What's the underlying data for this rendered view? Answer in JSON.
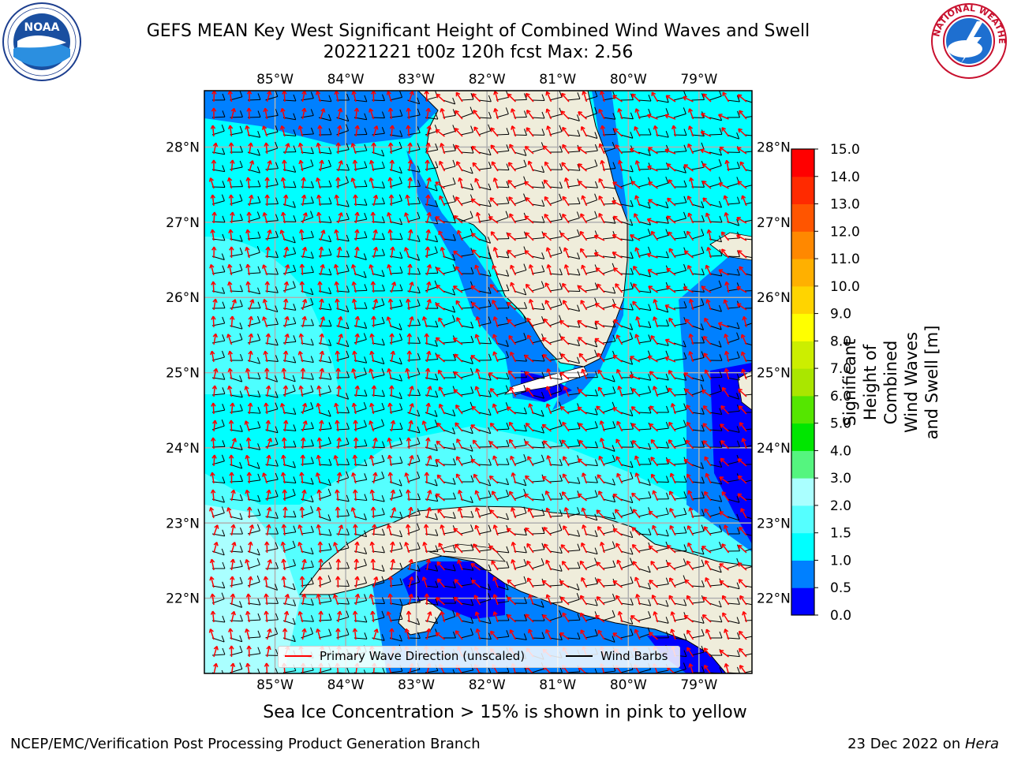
{
  "title": {
    "line1": "GEFS MEAN Key West Significant Height of Combined Wind Waves and Swell",
    "line2": "20221221 t00z 120h fcst   Max: 2.56"
  },
  "logos": {
    "noaa": {
      "text": "NOAA",
      "ring_text": "NATIONAL OCEANIC AND ATMOSPHERIC ADMINISTRATION · U.S. DEPARTMENT OF COMMERCE"
    },
    "nws": {
      "ring_text": "NATIONAL WEATHER SERVICE"
    }
  },
  "map": {
    "lon_labels": [
      "85°W",
      "84°W",
      "83°W",
      "82°W",
      "81°W",
      "80°W",
      "79°W"
    ],
    "lat_labels": [
      "28°N",
      "27°N",
      "26°N",
      "25°N",
      "24°N",
      "23°N",
      "22°N"
    ],
    "lon_values": [
      -85,
      -84,
      -83,
      -82,
      -81,
      -80,
      -79
    ],
    "lat_values": [
      28,
      27,
      26,
      25,
      24,
      23,
      22
    ],
    "extent": {
      "west": -86.0,
      "east": -78.25,
      "south": 21.0,
      "north": 28.75
    },
    "colors": {
      "land": "#efeddb",
      "coast": "#000000",
      "grid": "#b0b0b0",
      "wave": "#ff0000",
      "wind": "#000000"
    }
  },
  "legend": {
    "wave_label": "Primary Wave Direction (unscaled)",
    "wind_label": "Wind Barbs"
  },
  "colorbar": {
    "label": "Significant Height of Combined\nWind Waves and Swell [m]",
    "ticks": [
      "0.0",
      "0.5",
      "1.0",
      "1.5",
      "2.0",
      "3.0",
      "4.0",
      "5.0",
      "6.0",
      "7.0",
      "8.0",
      "9.0",
      "10.0",
      "11.0",
      "12.0",
      "13.0",
      "14.0",
      "15.0"
    ],
    "colors": [
      "#0000ff",
      "#0080ff",
      "#00ffff",
      "#55ffff",
      "#aaffff",
      "#55f57f",
      "#00e600",
      "#55e600",
      "#aae600",
      "#ccee00",
      "#ffff00",
      "#ffd400",
      "#ffb000",
      "#ff8800",
      "#ff5500",
      "#ff2a00",
      "#ff0000"
    ]
  },
  "footnote": "Sea Ice Concentration > 15% is shown in pink to yellow",
  "credits": {
    "left": "NCEP/EMC/Verification Post Processing Product Generation Branch",
    "right_date": "23 Dec 2022 on ",
    "right_host": "Hera"
  }
}
